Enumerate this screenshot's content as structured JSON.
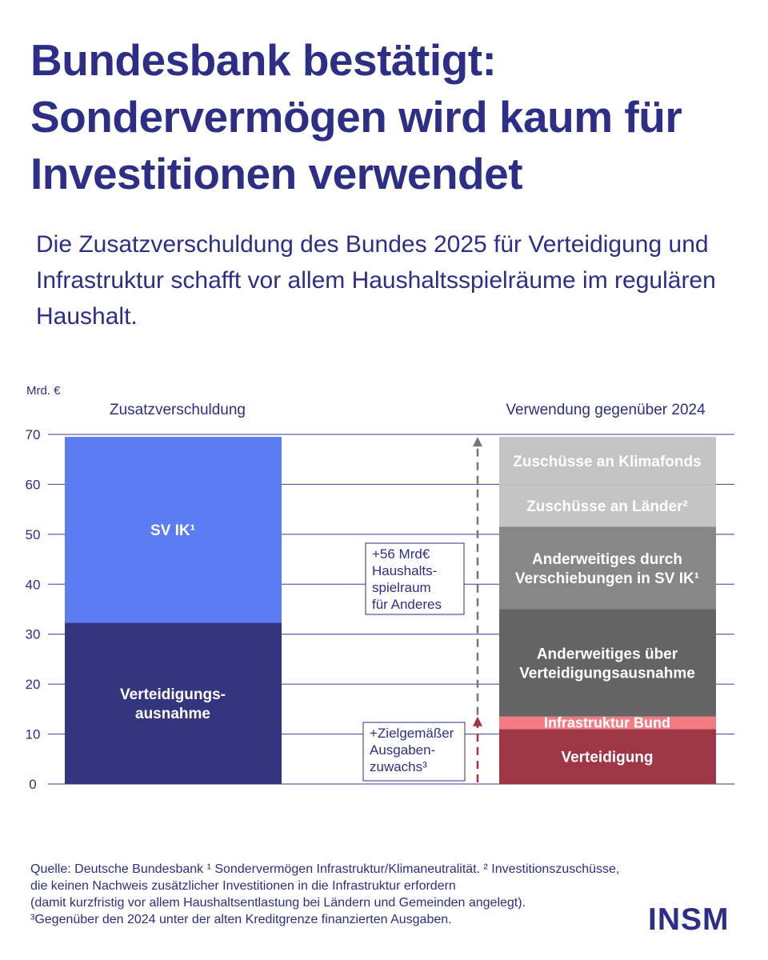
{
  "title": "Bundesbank bestätigt: Sondervermögen wird kaum für Investitionen verwendet",
  "subtitle": "Die Zusatzverschuldung des Bundes 2025 für Verteidigung und Infrastruktur schafft vor allem Haushaltsspielräume im regulären Haushalt.",
  "footnote": {
    "lines": [
      "Quelle: Deutsche Bundesbank ¹ Sondervermögen Infrastruktur/Klimaneutralität. ² Investitionszuschüsse,",
      "die keinen Nachweis zusätzlicher Investitionen in die Infrastruktur erfordern",
      "(damit kurzfristig vor allem Haushaltsentlastung bei Ländern und Gemeinden angelegt).",
      "³Gegenüber den 2024 unter der alten Kreditgrenze finanzierten Ausgaben."
    ]
  },
  "logo": "INSM",
  "chart_data": {
    "type": "bar",
    "unit_label": "Mrd. €",
    "ylim": [
      0,
      70
    ],
    "yticks": [
      0,
      10,
      20,
      30,
      40,
      50,
      60,
      70
    ],
    "grid": true,
    "columns": [
      {
        "label": "Zusatzverschuldung",
        "segments": [
          {
            "name": "Verteidigungs-\nausnahme",
            "from": 0,
            "to": 32.3,
            "color": "#34357f"
          },
          {
            "name": "SV IK¹",
            "from": 32.3,
            "to": 69.5,
            "color": "#5b7cf3"
          }
        ]
      },
      {
        "label": "Verwendung gegenüber 2024",
        "segments": [
          {
            "name": "Verteidigung",
            "from": 0,
            "to": 11,
            "color": "#9e3647"
          },
          {
            "name": "Infrastruktur Bund",
            "from": 11,
            "to": 13.5,
            "color": "#f47b82"
          },
          {
            "name": "Anderweitiges über\nVerteidigungsausnahme",
            "from": 13.5,
            "to": 35,
            "color": "#646464"
          },
          {
            "name": "Anderweitiges durch\nVerschiebungen in SV IK¹",
            "from": 35,
            "to": 51.5,
            "color": "#878787"
          },
          {
            "name": "Zuschüsse an Länder²",
            "from": 51.5,
            "to": 60,
            "color": "#c4c4c4"
          },
          {
            "name": "Zuschüsse an Klimafonds",
            "from": 60,
            "to": 69.5,
            "color": "#c4c4c4"
          }
        ]
      }
    ],
    "annotations": [
      {
        "text": "+56 Mrd€\nHaushalts-\nspielraum\nfür Anderes",
        "from": 13.5,
        "to": 69.5,
        "arrow_color": "#777777"
      },
      {
        "text": "+Zielgemäßer\nAusgaben-\nzuwachs³",
        "from": 0,
        "to": 13.5,
        "arrow_color": "#9e3647"
      }
    ]
  }
}
